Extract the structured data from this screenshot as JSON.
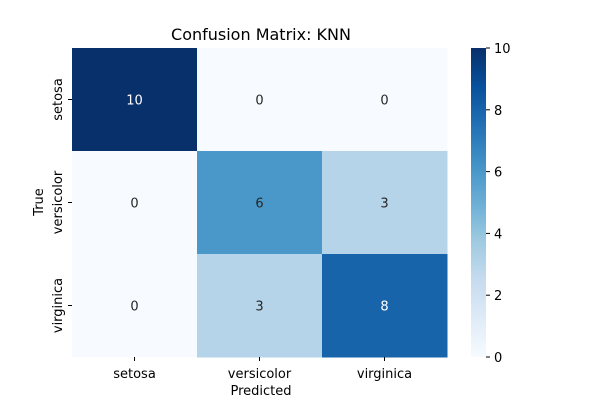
{
  "chart_data": {
    "type": "heatmap",
    "title": "Confusion Matrix: KNN",
    "xlabel": "Predicted",
    "ylabel": "True",
    "x_categories": [
      "setosa",
      "versicolor",
      "virginica"
    ],
    "y_categories": [
      "setosa",
      "versicolor",
      "virginica"
    ],
    "values": [
      [
        10,
        0,
        0
      ],
      [
        0,
        6,
        3
      ],
      [
        0,
        3,
        8
      ]
    ],
    "color_range": [
      0,
      10
    ],
    "colormap": "Blues",
    "colorbar_ticks": [
      0,
      2,
      4,
      6,
      8,
      10
    ],
    "colors": {
      "low": "#f7fbff",
      "high": "#08306b"
    }
  }
}
